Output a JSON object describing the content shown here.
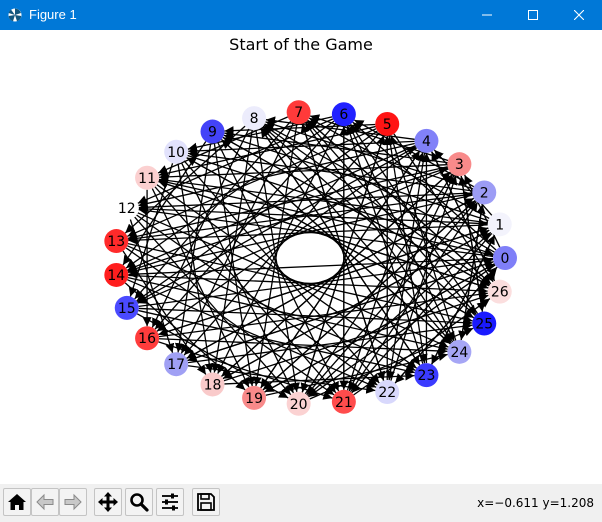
{
  "window": {
    "title": "Figure 1",
    "accent_color": "#0078d7",
    "controls": [
      "minimize-icon",
      "maximize-icon",
      "close-icon"
    ]
  },
  "figure": {
    "title": "Start of the Game",
    "nodes": [
      {
        "label": "0",
        "color": "#7f7ff8"
      },
      {
        "label": "1",
        "color": "#f3f3fc"
      },
      {
        "label": "2",
        "color": "#9c9cf5"
      },
      {
        "label": "3",
        "color": "#f88a8a"
      },
      {
        "label": "4",
        "color": "#8181f8"
      },
      {
        "label": "5",
        "color": "#ff1414"
      },
      {
        "label": "6",
        "color": "#2121ff"
      },
      {
        "label": "7",
        "color": "#ff3a3a"
      },
      {
        "label": "8",
        "color": "#ececfc"
      },
      {
        "label": "9",
        "color": "#4343f8"
      },
      {
        "label": "10",
        "color": "#e2e2fc"
      },
      {
        "label": "11",
        "color": "#fbd0d0"
      },
      {
        "label": "12",
        "color": "#ffffff"
      },
      {
        "label": "13",
        "color": "#ff2a2a"
      },
      {
        "label": "14",
        "color": "#ff1e1e"
      },
      {
        "label": "15",
        "color": "#4a4aff"
      },
      {
        "label": "16",
        "color": "#ff3c3c"
      },
      {
        "label": "17",
        "color": "#a0a0f4"
      },
      {
        "label": "18",
        "color": "#f9caca"
      },
      {
        "label": "19",
        "color": "#f88a8a"
      },
      {
        "label": "20",
        "color": "#fbd2d2"
      },
      {
        "label": "21",
        "color": "#ff4c4c"
      },
      {
        "label": "22",
        "color": "#d8d8fc"
      },
      {
        "label": "23",
        "color": "#3b3bff"
      },
      {
        "label": "24",
        "color": "#a6a6f5"
      },
      {
        "label": "25",
        "color": "#1a1aff"
      },
      {
        "label": "26",
        "color": "#fbdede"
      }
    ],
    "edges": [
      [
        0,
        14
      ],
      [
        0,
        8
      ],
      [
        0,
        19
      ],
      [
        0,
        11
      ],
      [
        0,
        6
      ],
      [
        0,
        22
      ],
      [
        0,
        17
      ],
      [
        0,
        3
      ],
      [
        0,
        12
      ],
      [
        0,
        20
      ],
      [
        1,
        9
      ],
      [
        1,
        16
      ],
      [
        1,
        21
      ],
      [
        1,
        13
      ],
      [
        1,
        7
      ],
      [
        1,
        23
      ],
      [
        1,
        18
      ],
      [
        1,
        4
      ],
      [
        1,
        11
      ],
      [
        2,
        10
      ],
      [
        2,
        17
      ],
      [
        2,
        14
      ],
      [
        2,
        20
      ],
      [
        2,
        6
      ],
      [
        2,
        24
      ],
      [
        2,
        12
      ],
      [
        2,
        19
      ],
      [
        2,
        8
      ],
      [
        3,
        11
      ],
      [
        3,
        15
      ],
      [
        3,
        21
      ],
      [
        3,
        7
      ],
      [
        3,
        18
      ],
      [
        3,
        13
      ],
      [
        3,
        25
      ],
      [
        3,
        9
      ],
      [
        4,
        12
      ],
      [
        4,
        16
      ],
      [
        4,
        22
      ],
      [
        4,
        19
      ],
      [
        4,
        14
      ],
      [
        4,
        8
      ],
      [
        4,
        26
      ],
      [
        4,
        10
      ],
      [
        5,
        13
      ],
      [
        5,
        17
      ],
      [
        5,
        20
      ],
      [
        5,
        23
      ],
      [
        5,
        15
      ],
      [
        5,
        9
      ],
      [
        5,
        11
      ],
      [
        5,
        26
      ],
      [
        6,
        14
      ],
      [
        6,
        18
      ],
      [
        6,
        21
      ],
      [
        6,
        24
      ],
      [
        6,
        16
      ],
      [
        6,
        10
      ],
      [
        6,
        12
      ],
      [
        7,
        15
      ],
      [
        7,
        19
      ],
      [
        7,
        22
      ],
      [
        7,
        25
      ],
      [
        7,
        17
      ],
      [
        7,
        11
      ],
      [
        7,
        26
      ],
      [
        8,
        16
      ],
      [
        8,
        20
      ],
      [
        8,
        23
      ],
      [
        8,
        26
      ],
      [
        8,
        18
      ],
      [
        8,
        13
      ],
      [
        8,
        24
      ],
      [
        9,
        17
      ],
      [
        9,
        21
      ],
      [
        9,
        24
      ],
      [
        9,
        19
      ],
      [
        9,
        14
      ],
      [
        9,
        26
      ],
      [
        10,
        18
      ],
      [
        10,
        22
      ],
      [
        10,
        25
      ],
      [
        10,
        20
      ],
      [
        10,
        15
      ],
      [
        10,
        0
      ],
      [
        11,
        19
      ],
      [
        11,
        23
      ],
      [
        11,
        26
      ],
      [
        11,
        21
      ],
      [
        11,
        16
      ],
      [
        12,
        20
      ],
      [
        12,
        24
      ],
      [
        12,
        22
      ],
      [
        12,
        17
      ],
      [
        12,
        1
      ],
      [
        13,
        21
      ],
      [
        13,
        25
      ],
      [
        13,
        23
      ],
      [
        13,
        18
      ],
      [
        13,
        2
      ],
      [
        14,
        22
      ],
      [
        14,
        26
      ],
      [
        14,
        24
      ],
      [
        14,
        19
      ],
      [
        14,
        3
      ],
      [
        15,
        23
      ],
      [
        15,
        0
      ],
      [
        15,
        25
      ],
      [
        15,
        20
      ],
      [
        15,
        4
      ],
      [
        16,
        24
      ],
      [
        16,
        1
      ],
      [
        16,
        26
      ],
      [
        16,
        21
      ],
      [
        17,
        25
      ],
      [
        17,
        2
      ],
      [
        17,
        0
      ],
      [
        17,
        22
      ],
      [
        18,
        26
      ],
      [
        18,
        3
      ],
      [
        18,
        1
      ],
      [
        18,
        23
      ],
      [
        19,
        0
      ],
      [
        19,
        4
      ],
      [
        19,
        2
      ],
      [
        19,
        24
      ],
      [
        20,
        1
      ],
      [
        20,
        5
      ],
      [
        20,
        3
      ],
      [
        20,
        25
      ],
      [
        21,
        2
      ],
      [
        21,
        6
      ],
      [
        21,
        4
      ],
      [
        21,
        26
      ],
      [
        22,
        3
      ],
      [
        22,
        7
      ],
      [
        22,
        5
      ],
      [
        22,
        0
      ],
      [
        23,
        4
      ],
      [
        23,
        8
      ],
      [
        23,
        6
      ],
      [
        23,
        1
      ],
      [
        24,
        5
      ],
      [
        24,
        9
      ],
      [
        24,
        7
      ],
      [
        24,
        2
      ],
      [
        25,
        6
      ],
      [
        25,
        10
      ],
      [
        25,
        8
      ],
      [
        25,
        3
      ],
      [
        26,
        7
      ],
      [
        26,
        11
      ],
      [
        26,
        9
      ],
      [
        26,
        4
      ]
    ]
  },
  "toolbar": {
    "buttons": [
      {
        "name": "home-button",
        "icon": "home-icon"
      },
      {
        "name": "back-button",
        "icon": "left-arrow-icon"
      },
      {
        "name": "forward-button",
        "icon": "right-arrow-icon"
      },
      {
        "name": "pan-button",
        "icon": "move-icon"
      },
      {
        "name": "zoom-button",
        "icon": "magnifier-icon"
      },
      {
        "name": "configure-subplots-button",
        "icon": "sliders-icon"
      },
      {
        "name": "save-button",
        "icon": "floppy-icon"
      }
    ],
    "coordinates": "x=−0.611 y=1.208"
  }
}
